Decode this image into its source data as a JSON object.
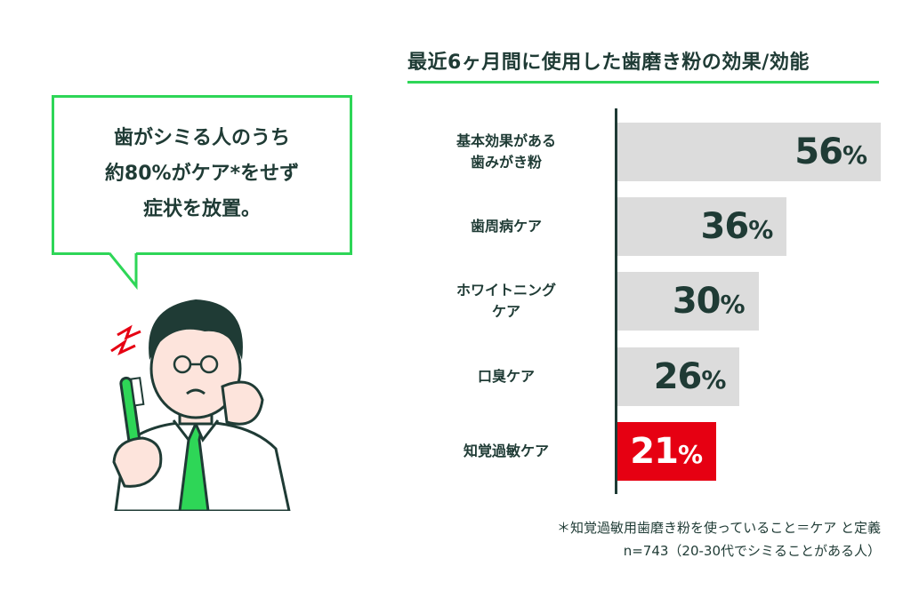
{
  "bubble": {
    "lines": [
      "歯がシミる人のうち",
      "約80%がケア*をせず",
      "症状を放置。"
    ]
  },
  "colors": {
    "accent_green": "#2ed657",
    "highlight_red": "#e60012",
    "bar_gray": "#dcdcdc",
    "text_dark": "#1f3b35"
  },
  "chart_data": {
    "type": "bar",
    "orientation": "horizontal",
    "title": "最近6ヶ月間に使用した歯磨き粉の効果/効能",
    "categories": [
      [
        "基本効果がある",
        "歯みがき粉"
      ],
      [
        "歯周病ケア"
      ],
      [
        "ホワイトニング",
        "ケア"
      ],
      [
        "口臭ケア"
      ],
      [
        "知覚過敏ケア"
      ]
    ],
    "values": [
      56,
      36,
      30,
      26,
      21
    ],
    "labels": [
      "56",
      "36",
      "30",
      "26",
      "21"
    ],
    "unit": "%",
    "highlight_index": 4,
    "xlim": [
      0,
      56
    ],
    "grid": false
  },
  "notes": {
    "definition": "＊知覚過敏用歯磨き粉を使っていること＝ケア と定義",
    "sample": "n=743（20-30代でシミることがある人）"
  }
}
